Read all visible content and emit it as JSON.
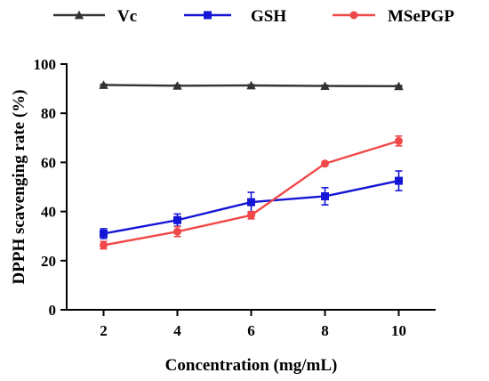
{
  "chart_data": {
    "type": "line",
    "title": "",
    "xlabel": "Concentration (mg/mL)",
    "ylabel": "DPPH scavenging rate (%)",
    "x": [
      2,
      4,
      6,
      8,
      10
    ],
    "xticks": [
      "2",
      "4",
      "6",
      "8",
      "10"
    ],
    "xlim": [
      1,
      11
    ],
    "ylim": [
      0,
      100
    ],
    "yticks": [
      "0",
      "20",
      "40",
      "60",
      "80",
      "100"
    ],
    "grid": false,
    "legend": "top",
    "series": [
      {
        "name": "Vc",
        "color": "#333333",
        "marker": "triangle",
        "values": [
          91.5,
          91.2,
          91.3,
          91.1,
          91.0
        ],
        "errors": [
          0.3,
          0.3,
          0.3,
          0.3,
          0.3
        ]
      },
      {
        "name": "GSH",
        "color": "#1515d6",
        "marker": "square",
        "values": [
          31.0,
          36.5,
          43.8,
          46.2,
          52.5
        ],
        "errors": [
          2.0,
          2.5,
          4.0,
          3.5,
          4.0
        ]
      },
      {
        "name": "MSePGP",
        "color": "#f04848",
        "marker": "circle",
        "values": [
          26.3,
          31.8,
          38.5,
          59.5,
          68.7
        ],
        "errors": [
          1.5,
          2.0,
          1.5,
          0.6,
          2.0
        ]
      }
    ]
  }
}
